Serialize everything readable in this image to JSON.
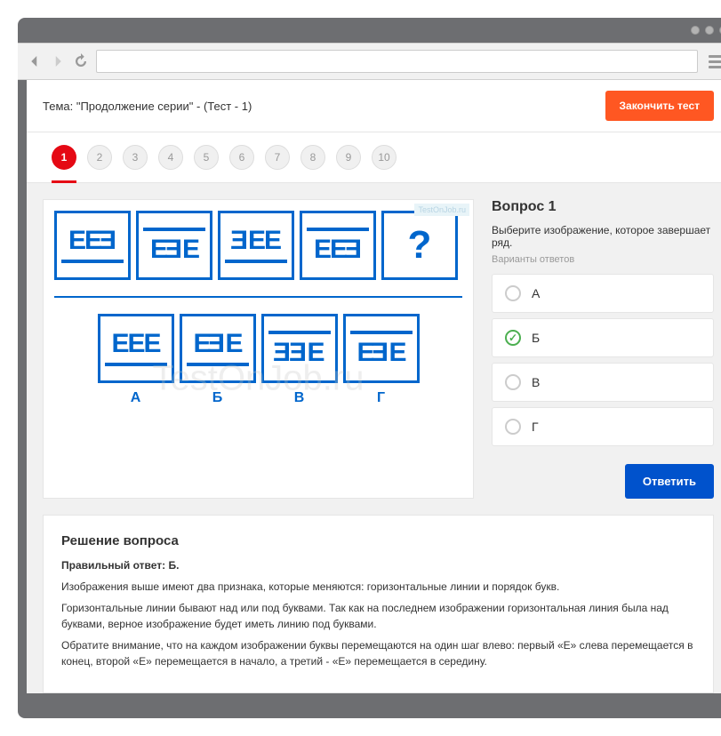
{
  "topic": "Тема: \"Продолжение серии\" - (Тест - 1)",
  "finish_button": "Закончить тест",
  "question_numbers": [
    "1",
    "2",
    "3",
    "4",
    "5",
    "6",
    "7",
    "8",
    "9",
    "10"
  ],
  "active_question_index": 0,
  "watermark_small": "TestOnJob.ru",
  "watermark_big": "TestOnJob.ru",
  "sequence": [
    {
      "letters": [
        "E",
        "E",
        "Ǝ"
      ],
      "line": "bottom"
    },
    {
      "letters": [
        "E",
        "Ǝ",
        "E"
      ],
      "line": "top"
    },
    {
      "letters": [
        "Ǝ",
        "E",
        "E"
      ],
      "line": "bottom"
    },
    {
      "letters": [
        "E",
        "E",
        "Ǝ"
      ],
      "line": "top"
    },
    {
      "qmark": "?"
    }
  ],
  "answers_row": [
    {
      "label": "А",
      "letters": [
        "E",
        "E",
        "E"
      ],
      "line": "bottom"
    },
    {
      "label": "Б",
      "letters": [
        "E",
        "Ǝ",
        "E"
      ],
      "line": "bottom"
    },
    {
      "label": "В",
      "letters": [
        "Ǝ",
        "Ǝ",
        "E"
      ],
      "line": "top"
    },
    {
      "label": "Г",
      "letters": [
        "E",
        "Ǝ",
        "E"
      ],
      "line": "top"
    }
  ],
  "side": {
    "title": "Вопрос 1",
    "prompt": "Выберите изображение, которое завершает ряд.",
    "variants_label": "Варианты ответов",
    "options": [
      {
        "label": "А",
        "checked": false
      },
      {
        "label": "Б",
        "checked": true
      },
      {
        "label": "В",
        "checked": false
      },
      {
        "label": "Г",
        "checked": false
      }
    ],
    "answer_button": "Ответить"
  },
  "solution": {
    "title": "Решение вопроса",
    "correct": "Правильный ответ: Б.",
    "paragraphs": [
      "Изображения выше имеют два признака, которые меняются: горизонтальные линии и порядок букв.",
      "Горизонтальные линии бывают над или под буквами. Так как на последнем изображении горизонтальная линия была над буквами, верное изображение будет иметь линию под буквами.",
      "Обратите внимание, что на каждом изображении буквы перемещаются на один шаг влево: первый «Е» слева перемещается в конец, второй «Е» перемещается в начало, а третий - «Е» перемещается в середину."
    ]
  },
  "colors": {
    "accent_blue": "#0066cc",
    "primary_button": "#0052cc",
    "finish_button": "#ff5722",
    "active_red": "#e50914",
    "check_green": "#4caf50"
  }
}
